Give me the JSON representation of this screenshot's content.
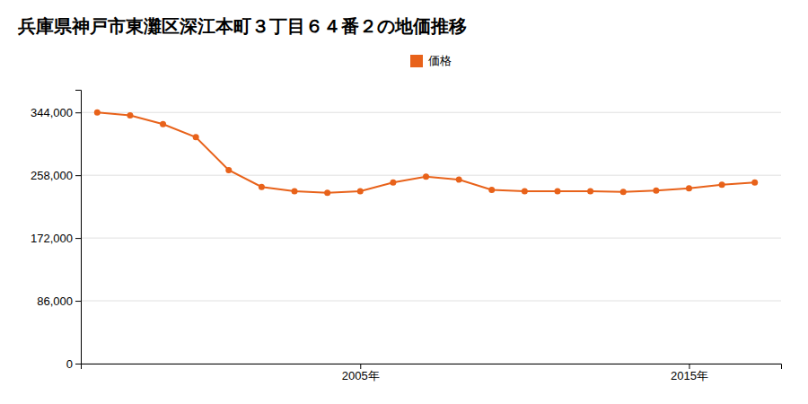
{
  "chart_data": {
    "type": "line",
    "title": "兵庫県神戸市東灘区深江本町３丁目６４番２の地価推移",
    "x": [
      1997,
      1998,
      1999,
      2000,
      2001,
      2002,
      2003,
      2004,
      2005,
      2006,
      2007,
      2008,
      2009,
      2010,
      2011,
      2012,
      2013,
      2014,
      2015,
      2016,
      2017
    ],
    "series": [
      {
        "name": "価格",
        "color": "#e8621a",
        "marker": "circle",
        "values": [
          344000,
          340000,
          328000,
          310000,
          265000,
          242000,
          236000,
          234000,
          236000,
          248000,
          256000,
          252000,
          238000,
          236000,
          236000,
          236000,
          235000,
          237000,
          240000,
          245000,
          248000
        ]
      }
    ],
    "xlim": [
      1996.5,
      2017.8
    ],
    "xticks": [
      {
        "value": 2005,
        "label": "2005年"
      },
      {
        "value": 2015,
        "label": "2015年"
      }
    ],
    "ylim": [
      0,
      375000
    ],
    "yticks": [
      0,
      {
        "value": 86000,
        "label": "86,000"
      },
      {
        "value": 172000,
        "label": "172,000"
      },
      {
        "value": 258000,
        "label": "258,000"
      },
      {
        "value": 344000,
        "label": "344,000"
      }
    ],
    "grid": "y",
    "legend": "top"
  }
}
